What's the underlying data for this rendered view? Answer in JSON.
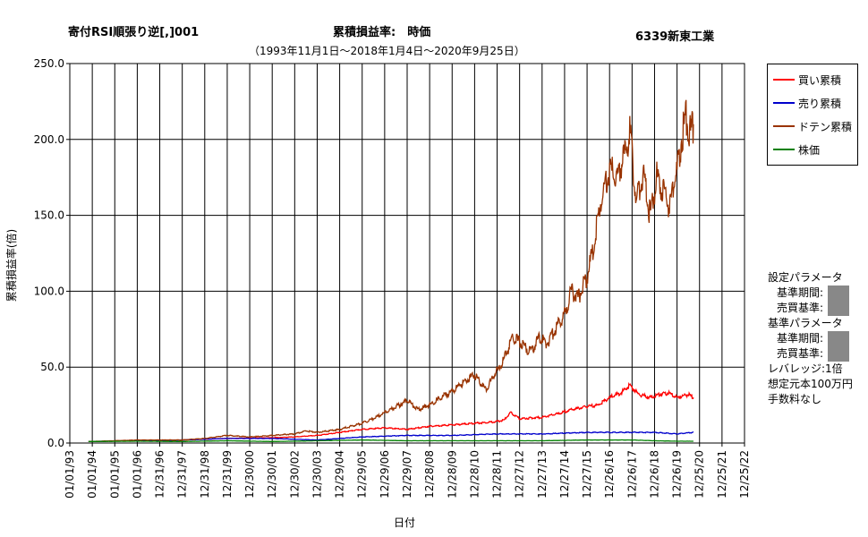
{
  "header": {
    "title_left": "寄付RSI順張り逆[,]001",
    "title_center": "累積損益率:　時価",
    "title_right": "6339新東工業",
    "subtitle": "（1993年11月1日～2018年1月4日～2020年9月25日）"
  },
  "legend": [
    {
      "label": "買い累積",
      "color": "#ff0000"
    },
    {
      "label": "売り累積",
      "color": "#0000cc"
    },
    {
      "label": "ドテン累積",
      "color": "#993300"
    },
    {
      "label": "株価",
      "color": "#008000"
    }
  ],
  "params": {
    "setting_header": "設定パラメータ",
    "period_label1": "基準期間:",
    "trade_label1": "売買基準:",
    "base_header": "基準パラメータ",
    "period_label2": "基準期間:",
    "trade_label2": "売買基準:",
    "leverage": "レバレッジ:1倍",
    "capital": "想定元本100万円",
    "fee": "手数料なし"
  },
  "chart_data": {
    "type": "line",
    "title": "累積損益率:　時価",
    "ylabel": "累積損益率(倍)",
    "xlabel": "日付",
    "ylim": [
      0,
      250
    ],
    "yticks": [
      "0.0",
      "50.0",
      "100.0",
      "150.0",
      "200.0",
      "250.0"
    ],
    "xticks": [
      "01/01/93",
      "01/01/94",
      "01/01/95",
      "01/01/96",
      "12/31/96",
      "12/31/97",
      "12/31/98",
      "12/31/99",
      "12/30/00",
      "12/30/01",
      "12/30/02",
      "12/30/03",
      "12/29/04",
      "12/29/05",
      "12/29/06",
      "12/29/07",
      "12/28/08",
      "12/28/09",
      "12/28/10",
      "12/28/11",
      "12/27/12",
      "12/27/13",
      "12/27/14",
      "12/27/15",
      "12/26/16",
      "12/26/17",
      "12/26/18",
      "12/26/19",
      "12/25/20",
      "12/25/21",
      "12/25/22"
    ],
    "grid": true,
    "legend_position": "right",
    "series": [
      {
        "name": "買い累積",
        "color": "#ff0000",
        "x": [
          1993.83,
          1996,
          1998,
          2000,
          2002,
          2003,
          2004,
          2005,
          2006,
          2007,
          2008,
          2009,
          2010,
          2011,
          2011.9,
          2012.3,
          2012.6,
          2013,
          2014,
          2014.9,
          2015.3,
          2016,
          2016.5,
          2017,
          2017.5,
          2017.9,
          2018.3,
          2018.8,
          2019.2,
          2019.6,
          2020,
          2020.5,
          2020.73
        ],
        "y": [
          1,
          1.5,
          2,
          3,
          3.5,
          4,
          5,
          7,
          9,
          10,
          9,
          11,
          12,
          13,
          14,
          15,
          20,
          16,
          17,
          20,
          22,
          24,
          25,
          30,
          33,
          38,
          32,
          30,
          32,
          33,
          30,
          32,
          30
        ]
      },
      {
        "name": "売り累積",
        "color": "#0000cc",
        "x": [
          1993.83,
          1996,
          1998,
          2000,
          2002,
          2004,
          2006,
          2008,
          2010,
          2012,
          2014,
          2016,
          2018,
          2019,
          2020,
          2020.73
        ],
        "y": [
          1,
          1.5,
          2,
          3,
          3,
          2,
          4,
          5,
          5,
          6,
          6,
          7,
          7,
          7,
          6,
          7
        ]
      },
      {
        "name": "ドテン累積",
        "color": "#993300",
        "x": [
          1993.83,
          1995,
          1996,
          1997,
          1998,
          1999,
          2000,
          2001,
          2002,
          2003,
          2003.5,
          2004,
          2005,
          2005.5,
          2006,
          2006.5,
          2007,
          2007.5,
          2008,
          2008.5,
          2009,
          2009.5,
          2010,
          2010.5,
          2011,
          2011.5,
          2011.9,
          2012.3,
          2012.7,
          2013.1,
          2013.5,
          2013.9,
          2014.2,
          2014.6,
          2015,
          2015.3,
          2015.6,
          2016,
          2016.3,
          2016.6,
          2017,
          2017.3,
          2017.7,
          2017.9,
          2018.2,
          2018.5,
          2018.8,
          2019.1,
          2019.4,
          2019.7,
          2019.85,
          2020,
          2020.2,
          2020.4,
          2020.6,
          2020.73
        ],
        "y": [
          1,
          1.5,
          2,
          2,
          2,
          3,
          5,
          4,
          5,
          6,
          8,
          7,
          9,
          11,
          13,
          16,
          20,
          24,
          28,
          22,
          25,
          30,
          34,
          40,
          45,
          35,
          45,
          55,
          70,
          65,
          60,
          70,
          65,
          75,
          85,
          100,
          95,
          110,
          130,
          160,
          180,
          175,
          190,
          205,
          160,
          180,
          150,
          175,
          165,
          155,
          170,
          180,
          200,
          215,
          205,
          210
        ]
      },
      {
        "name": "株価",
        "color": "#008000",
        "x": [
          1993.83,
          1996,
          1998,
          2000,
          2002,
          2004,
          2006,
          2008,
          2010,
          2012,
          2014,
          2016,
          2018,
          2019,
          2020,
          2020.73
        ],
        "y": [
          1,
          1.2,
          1,
          1.5,
          1,
          1.5,
          2,
          1.5,
          1.5,
          1.5,
          1.5,
          2,
          2,
          1.5,
          1.2,
          1.2
        ]
      }
    ]
  }
}
